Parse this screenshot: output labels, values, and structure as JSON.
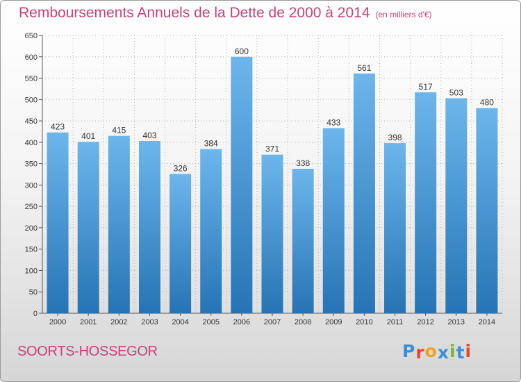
{
  "title": "Remboursements Annuels de la Dette de 2000 à 2014",
  "subtitle": "(en milliers d'€)",
  "commune": "SOORTS-HOSSEGOR",
  "logo": {
    "text": "Proxiti",
    "letter_colors": [
      "#3a8fd8",
      "#e6482a",
      "#f2a21a",
      "#3a8fd8",
      "#7ab829",
      "#3a8fd8",
      "#e6482a"
    ]
  },
  "colors": {
    "bar_top": "#6cb6ec",
    "bar_bottom": "#2674b5",
    "title": "#c8417a",
    "grid": "#b5b5b5"
  },
  "chart_data": {
    "type": "bar",
    "categories": [
      "2000",
      "2001",
      "2002",
      "2003",
      "2004",
      "2005",
      "2006",
      "2007",
      "2008",
      "2009",
      "2010",
      "2011",
      "2012",
      "2013",
      "2014"
    ],
    "values": [
      423,
      401,
      415,
      403,
      326,
      384,
      600,
      371,
      338,
      433,
      561,
      398,
      517,
      503,
      480
    ],
    "ylim": [
      0,
      650
    ],
    "yticks": [
      0,
      50,
      100,
      150,
      200,
      250,
      300,
      350,
      400,
      450,
      500,
      550,
      600,
      650
    ],
    "grid": true,
    "data_labels": true
  }
}
